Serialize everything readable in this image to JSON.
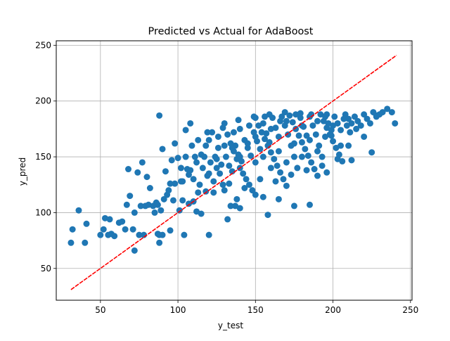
{
  "chart_data": {
    "type": "scatter",
    "title": "Predicted vs Actual for AdaBoost",
    "xlabel": "y_test",
    "ylabel": "y_pred",
    "xlim": [
      21.5,
      251.0
    ],
    "ylim": [
      21.5,
      254.0
    ],
    "xticks": [
      50,
      100,
      150,
      200,
      250
    ],
    "yticks": [
      50,
      100,
      150,
      200,
      250
    ],
    "grid": true,
    "colors": {
      "points": "#1f77b4",
      "fit_line": "#ff0000",
      "grid": "#b0b0b0"
    },
    "series": [
      {
        "points": [
          [
            31,
            73
          ],
          [
            32,
            85
          ],
          [
            36,
            102
          ],
          [
            40,
            73
          ],
          [
            41,
            90
          ],
          [
            50,
            80
          ],
          [
            52,
            85
          ],
          [
            53,
            95
          ],
          [
            55,
            80
          ],
          [
            56,
            94
          ],
          [
            57,
            81
          ],
          [
            59,
            79
          ],
          [
            62,
            91
          ],
          [
            64,
            92
          ],
          [
            66,
            85
          ],
          [
            67,
            107
          ],
          [
            68,
            139
          ],
          [
            69,
            115
          ],
          [
            71,
            85
          ],
          [
            72,
            66
          ],
          [
            72,
            100
          ],
          [
            74,
            136
          ],
          [
            75,
            80
          ],
          [
            76,
            106
          ],
          [
            77,
            145
          ],
          [
            78,
            80
          ],
          [
            79,
            106
          ],
          [
            80,
            132
          ],
          [
            81,
            107
          ],
          [
            82,
            122
          ],
          [
            84,
            106
          ],
          [
            85,
            100
          ],
          [
            86,
            109
          ],
          [
            87,
            107
          ],
          [
            87,
            81
          ],
          [
            88,
            80
          ],
          [
            88,
            73
          ],
          [
            88,
            187
          ],
          [
            89,
            102
          ],
          [
            90,
            157
          ],
          [
            90,
            80
          ],
          [
            91,
            112
          ],
          [
            92,
            137
          ],
          [
            93,
            116
          ],
          [
            94,
            120
          ],
          [
            95,
            84
          ],
          [
            96,
            147
          ],
          [
            97,
            111
          ],
          [
            98,
            162
          ],
          [
            98,
            126
          ],
          [
            100,
            149
          ],
          [
            101,
            102
          ],
          [
            102,
            128
          ],
          [
            103,
            111
          ],
          [
            104,
            80
          ],
          [
            105,
            174
          ],
          [
            106,
            139
          ],
          [
            107,
            108
          ],
          [
            108,
            180
          ],
          [
            110,
            110
          ],
          [
            112,
            101
          ],
          [
            115,
            99
          ],
          [
            118,
            119
          ],
          [
            120,
            135
          ],
          [
            120,
            80
          ],
          [
            125,
            140
          ],
          [
            130,
            120
          ],
          [
            132,
            94
          ],
          [
            134,
            106
          ],
          [
            137,
            106
          ],
          [
            138,
            112
          ],
          [
            140,
            104
          ],
          [
            150,
            116
          ],
          [
            155,
            114
          ],
          [
            158,
            98
          ],
          [
            165,
            112
          ],
          [
            175,
            106
          ],
          [
            185,
            107
          ],
          [
            196,
            136
          ],
          [
            210,
            160
          ],
          [
            220,
            168
          ],
          [
            225,
            154
          ],
          [
            232,
            190
          ],
          [
            238,
            190
          ],
          [
            240,
            180
          ],
          [
            199,
            169
          ],
          [
            203,
            148
          ],
          [
            205,
            160
          ],
          [
            212,
            147
          ],
          [
            215,
            175
          ],
          [
            228,
            187
          ],
          [
            235,
            193
          ],
          [
            95,
            126
          ],
          [
            102,
            140
          ],
          [
            105,
            150
          ],
          [
            108,
            138
          ],
          [
            112,
            145
          ],
          [
            115,
            152
          ],
          [
            118,
            160
          ],
          [
            120,
            165
          ],
          [
            122,
            172
          ],
          [
            124,
            150
          ],
          [
            126,
            158
          ],
          [
            128,
            143
          ],
          [
            130,
            180
          ],
          [
            132,
            170
          ],
          [
            134,
            162
          ],
          [
            136,
            155
          ],
          [
            138,
            148
          ],
          [
            140,
            140
          ],
          [
            142,
            135
          ],
          [
            144,
            130
          ],
          [
            146,
            125
          ],
          [
            148,
            120
          ],
          [
            150,
            185
          ],
          [
            152,
            178
          ],
          [
            154,
            172
          ],
          [
            156,
            166
          ],
          [
            158,
            160
          ],
          [
            160,
            154
          ],
          [
            162,
            148
          ],
          [
            164,
            142
          ],
          [
            166,
            136
          ],
          [
            168,
            130
          ],
          [
            170,
            124
          ],
          [
            172,
            187
          ],
          [
            174,
            181
          ],
          [
            176,
            175
          ],
          [
            178,
            169
          ],
          [
            180,
            163
          ],
          [
            182,
            157
          ],
          [
            184,
            151
          ],
          [
            186,
            145
          ],
          [
            188,
            139
          ],
          [
            190,
            133
          ],
          [
            192,
            188
          ],
          [
            194,
            182
          ],
          [
            196,
            176
          ],
          [
            198,
            170
          ],
          [
            200,
            164
          ],
          [
            202,
            158
          ],
          [
            204,
            152
          ],
          [
            206,
            146
          ],
          [
            208,
            188
          ],
          [
            210,
            184
          ],
          [
            212,
            180
          ],
          [
            214,
            186
          ],
          [
            216,
            182
          ],
          [
            218,
            178
          ],
          [
            220,
            188
          ],
          [
            222,
            184
          ],
          [
            224,
            180
          ],
          [
            226,
            190
          ],
          [
            228,
            186
          ],
          [
            230,
            188
          ],
          [
            110,
            130
          ],
          [
            114,
            125
          ],
          [
            116,
            140
          ],
          [
            119,
            133
          ],
          [
            121,
            145
          ],
          [
            123,
            128
          ],
          [
            127,
            135
          ],
          [
            129,
            125
          ],
          [
            131,
            150
          ],
          [
            133,
            142
          ],
          [
            135,
            137
          ],
          [
            137,
            160
          ],
          [
            139,
            152
          ],
          [
            141,
            146
          ],
          [
            143,
            165
          ],
          [
            145,
            158
          ],
          [
            147,
            151
          ],
          [
            149,
            172
          ],
          [
            151,
            164
          ],
          [
            153,
            157
          ],
          [
            155,
            180
          ],
          [
            157,
            171
          ],
          [
            159,
            163
          ],
          [
            161,
            185
          ],
          [
            163,
            176
          ],
          [
            165,
            168
          ],
          [
            167,
            186
          ],
          [
            169,
            178
          ],
          [
            171,
            170
          ],
          [
            173,
            160
          ],
          [
            175,
            150
          ],
          [
            177,
            140
          ],
          [
            179,
            185
          ],
          [
            181,
            177
          ],
          [
            183,
            169
          ],
          [
            185,
            186
          ],
          [
            187,
            178
          ],
          [
            189,
            170
          ],
          [
            191,
            160
          ],
          [
            193,
            150
          ],
          [
            195,
            186
          ],
          [
            197,
            180
          ],
          [
            199,
            174
          ],
          [
            201,
            186
          ],
          [
            203,
            180
          ],
          [
            205,
            174
          ],
          [
            207,
            184
          ],
          [
            209,
            178
          ],
          [
            211,
            172
          ],
          [
            125,
            148
          ],
          [
            135,
            158
          ],
          [
            145,
            162
          ],
          [
            155,
            150
          ],
          [
            165,
            155
          ],
          [
            175,
            162
          ],
          [
            185,
            165
          ],
          [
            195,
            168
          ],
          [
            140,
            175
          ],
          [
            150,
            168
          ],
          [
            160,
            175
          ],
          [
            170,
            182
          ],
          [
            180,
            178
          ],
          [
            190,
            182
          ],
          [
            200,
            178
          ],
          [
            130,
            160
          ],
          [
            140,
            150
          ],
          [
            150,
            145
          ],
          [
            160,
            140
          ],
          [
            170,
            145
          ],
          [
            180,
            150
          ],
          [
            190,
            155
          ],
          [
            117,
            150
          ],
          [
            126,
            168
          ],
          [
            136,
            172
          ],
          [
            146,
            178
          ],
          [
            156,
            186
          ],
          [
            166,
            182
          ],
          [
            176,
            188
          ],
          [
            186,
            188
          ],
          [
            196,
            188
          ],
          [
            113,
            118
          ],
          [
            123,
            118
          ],
          [
            133,
            126
          ],
          [
            143,
            122
          ],
          [
            153,
            130
          ],
          [
            163,
            128
          ],
          [
            173,
            134
          ],
          [
            183,
            138
          ],
          [
            193,
            142
          ],
          [
            103,
            128
          ],
          [
            107,
            134
          ],
          [
            111,
            150
          ],
          [
            109,
            160
          ],
          [
            113,
            165
          ],
          [
            119,
            172
          ],
          [
            129,
            176
          ],
          [
            139,
            183
          ],
          [
            149,
            186
          ],
          [
            159,
            188
          ],
          [
            169,
            190
          ],
          [
            179,
            189
          ]
        ]
      }
    ],
    "fit_line": {
      "x": [
        31,
        241
      ],
      "y": [
        31,
        241
      ]
    }
  }
}
